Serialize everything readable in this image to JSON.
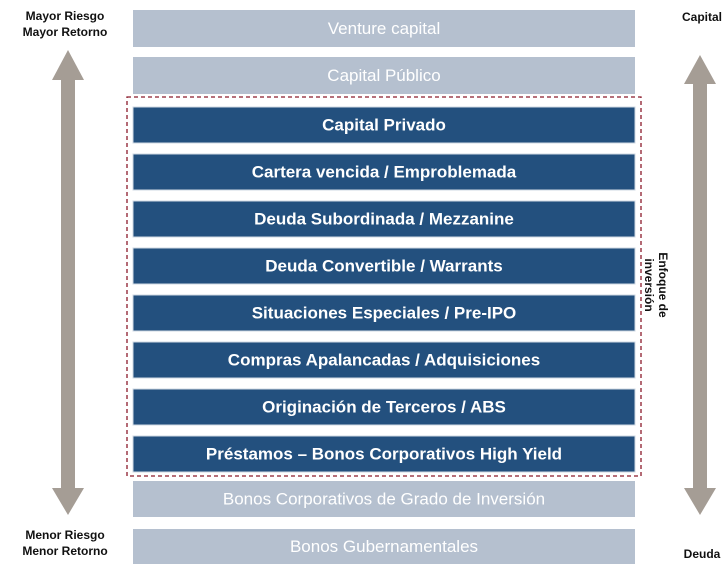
{
  "top_left": [
    "Mayor Riesgo",
    "Mayor Retorno"
  ],
  "bottom_left": [
    "Menor Riesgo",
    "Menor Retorno"
  ],
  "top_right": "Capital",
  "bottom_right": "Deuda",
  "focus_label": [
    "Enfoque de",
    "inversión"
  ],
  "outer_top": [
    "Venture capital",
    "Capital Público"
  ],
  "focus_bars": [
    "Capital Privado",
    "Cartera vencida / Emproblemada",
    "Deuda Subordinada / Mezzanine",
    "Deuda Convertible / Warrants",
    "Situaciones Especiales / Pre-IPO",
    "Compras Apalancadas / Adquisiciones",
    "Originación de Terceros / ABS",
    "Préstamos – Bonos Corporativos High Yield"
  ],
  "outer_bottom": [
    "Bonos Corporativos de Grado de Inversión",
    "Bonos Gubernamentales"
  ]
}
